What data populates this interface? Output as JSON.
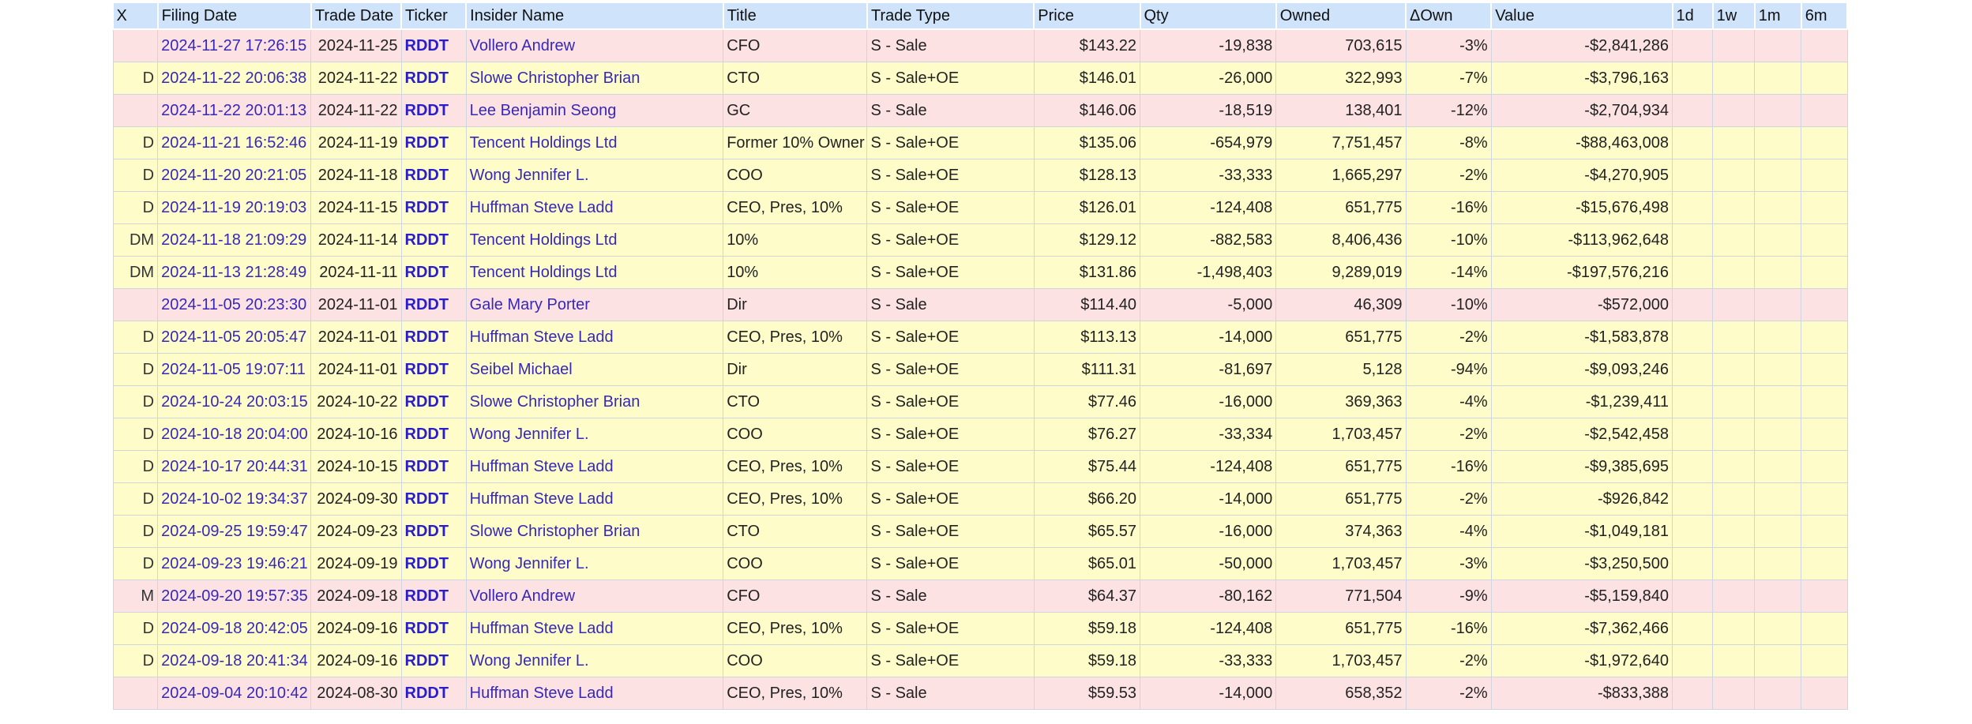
{
  "table": {
    "headers": [
      "X",
      "Filing Date",
      "Trade Date",
      "Ticker",
      "Insider Name",
      "Title",
      "Trade Type",
      "Price",
      "Qty",
      "Owned",
      "ΔOwn",
      "Value",
      "1d",
      "1w",
      "1m",
      "6m"
    ],
    "rows": [
      {
        "x": "",
        "filing_date": "2024-11-27 17:26:15",
        "trade_date": "2024-11-25",
        "ticker": "RDDT",
        "insider": "Vollero Andrew",
        "title": "CFO",
        "trade_type": "S - Sale",
        "price": "$143.22",
        "qty": "-19,838",
        "owned": "703,615",
        "own_change": "-3%",
        "value": "-$2,841,286",
        "d1": "",
        "w1": "",
        "m1": "",
        "m6": ""
      },
      {
        "x": "D",
        "filing_date": "2024-11-22 20:06:38",
        "trade_date": "2024-11-22",
        "ticker": "RDDT",
        "insider": "Slowe Christopher Brian",
        "title": "CTO",
        "trade_type": "S - Sale+OE",
        "price": "$146.01",
        "qty": "-26,000",
        "owned": "322,993",
        "own_change": "-7%",
        "value": "-$3,796,163",
        "d1": "",
        "w1": "",
        "m1": "",
        "m6": ""
      },
      {
        "x": "",
        "filing_date": "2024-11-22 20:01:13",
        "trade_date": "2024-11-22",
        "ticker": "RDDT",
        "insider": "Lee Benjamin Seong",
        "title": "GC",
        "trade_type": "S - Sale",
        "price": "$146.06",
        "qty": "-18,519",
        "owned": "138,401",
        "own_change": "-12%",
        "value": "-$2,704,934",
        "d1": "",
        "w1": "",
        "m1": "",
        "m6": ""
      },
      {
        "x": "D",
        "filing_date": "2024-11-21 16:52:46",
        "trade_date": "2024-11-19",
        "ticker": "RDDT",
        "insider": "Tencent Holdings Ltd",
        "title": "Former 10% Owner",
        "trade_type": "S - Sale+OE",
        "price": "$135.06",
        "qty": "-654,979",
        "owned": "7,751,457",
        "own_change": "-8%",
        "value": "-$88,463,008",
        "d1": "",
        "w1": "",
        "m1": "",
        "m6": ""
      },
      {
        "x": "D",
        "filing_date": "2024-11-20 20:21:05",
        "trade_date": "2024-11-18",
        "ticker": "RDDT",
        "insider": "Wong Jennifer L.",
        "title": "COO",
        "trade_type": "S - Sale+OE",
        "price": "$128.13",
        "qty": "-33,333",
        "owned": "1,665,297",
        "own_change": "-2%",
        "value": "-$4,270,905",
        "d1": "",
        "w1": "",
        "m1": "",
        "m6": ""
      },
      {
        "x": "D",
        "filing_date": "2024-11-19 20:19:03",
        "trade_date": "2024-11-15",
        "ticker": "RDDT",
        "insider": "Huffman Steve Ladd",
        "title": "CEO, Pres, 10%",
        "trade_type": "S - Sale+OE",
        "price": "$126.01",
        "qty": "-124,408",
        "owned": "651,775",
        "own_change": "-16%",
        "value": "-$15,676,498",
        "d1": "",
        "w1": "",
        "m1": "",
        "m6": ""
      },
      {
        "x": "DM",
        "filing_date": "2024-11-18 21:09:29",
        "trade_date": "2024-11-14",
        "ticker": "RDDT",
        "insider": "Tencent Holdings Ltd",
        "title": "10%",
        "trade_type": "S - Sale+OE",
        "price": "$129.12",
        "qty": "-882,583",
        "owned": "8,406,436",
        "own_change": "-10%",
        "value": "-$113,962,648",
        "d1": "",
        "w1": "",
        "m1": "",
        "m6": ""
      },
      {
        "x": "DM",
        "filing_date": "2024-11-13 21:28:49",
        "trade_date": "2024-11-11",
        "ticker": "RDDT",
        "insider": "Tencent Holdings Ltd",
        "title": "10%",
        "trade_type": "S - Sale+OE",
        "price": "$131.86",
        "qty": "-1,498,403",
        "owned": "9,289,019",
        "own_change": "-14%",
        "value": "-$197,576,216",
        "d1": "",
        "w1": "",
        "m1": "",
        "m6": ""
      },
      {
        "x": "",
        "filing_date": "2024-11-05 20:23:30",
        "trade_date": "2024-11-01",
        "ticker": "RDDT",
        "insider": "Gale Mary Porter",
        "title": "Dir",
        "trade_type": "S - Sale",
        "price": "$114.40",
        "qty": "-5,000",
        "owned": "46,309",
        "own_change": "-10%",
        "value": "-$572,000",
        "d1": "",
        "w1": "",
        "m1": "",
        "m6": ""
      },
      {
        "x": "D",
        "filing_date": "2024-11-05 20:05:47",
        "trade_date": "2024-11-01",
        "ticker": "RDDT",
        "insider": "Huffman Steve Ladd",
        "title": "CEO, Pres, 10%",
        "trade_type": "S - Sale+OE",
        "price": "$113.13",
        "qty": "-14,000",
        "owned": "651,775",
        "own_change": "-2%",
        "value": "-$1,583,878",
        "d1": "",
        "w1": "",
        "m1": "",
        "m6": ""
      },
      {
        "x": "D",
        "filing_date": "2024-11-05 19:07:11",
        "trade_date": "2024-11-01",
        "ticker": "RDDT",
        "insider": "Seibel Michael",
        "title": "Dir",
        "trade_type": "S - Sale+OE",
        "price": "$111.31",
        "qty": "-81,697",
        "owned": "5,128",
        "own_change": "-94%",
        "value": "-$9,093,246",
        "d1": "",
        "w1": "",
        "m1": "",
        "m6": ""
      },
      {
        "x": "D",
        "filing_date": "2024-10-24 20:03:15",
        "trade_date": "2024-10-22",
        "ticker": "RDDT",
        "insider": "Slowe Christopher Brian",
        "title": "CTO",
        "trade_type": "S - Sale+OE",
        "price": "$77.46",
        "qty": "-16,000",
        "owned": "369,363",
        "own_change": "-4%",
        "value": "-$1,239,411",
        "d1": "",
        "w1": "",
        "m1": "",
        "m6": ""
      },
      {
        "x": "D",
        "filing_date": "2024-10-18 20:04:00",
        "trade_date": "2024-10-16",
        "ticker": "RDDT",
        "insider": "Wong Jennifer L.",
        "title": "COO",
        "trade_type": "S - Sale+OE",
        "price": "$76.27",
        "qty": "-33,334",
        "owned": "1,703,457",
        "own_change": "-2%",
        "value": "-$2,542,458",
        "d1": "",
        "w1": "",
        "m1": "",
        "m6": ""
      },
      {
        "x": "D",
        "filing_date": "2024-10-17 20:44:31",
        "trade_date": "2024-10-15",
        "ticker": "RDDT",
        "insider": "Huffman Steve Ladd",
        "title": "CEO, Pres, 10%",
        "trade_type": "S - Sale+OE",
        "price": "$75.44",
        "qty": "-124,408",
        "owned": "651,775",
        "own_change": "-16%",
        "value": "-$9,385,695",
        "d1": "",
        "w1": "",
        "m1": "",
        "m6": ""
      },
      {
        "x": "D",
        "filing_date": "2024-10-02 19:34:37",
        "trade_date": "2024-09-30",
        "ticker": "RDDT",
        "insider": "Huffman Steve Ladd",
        "title": "CEO, Pres, 10%",
        "trade_type": "S - Sale+OE",
        "price": "$66.20",
        "qty": "-14,000",
        "owned": "651,775",
        "own_change": "-2%",
        "value": "-$926,842",
        "d1": "",
        "w1": "",
        "m1": "",
        "m6": ""
      },
      {
        "x": "D",
        "filing_date": "2024-09-25 19:59:47",
        "trade_date": "2024-09-23",
        "ticker": "RDDT",
        "insider": "Slowe Christopher Brian",
        "title": "CTO",
        "trade_type": "S - Sale+OE",
        "price": "$65.57",
        "qty": "-16,000",
        "owned": "374,363",
        "own_change": "-4%",
        "value": "-$1,049,181",
        "d1": "",
        "w1": "",
        "m1": "",
        "m6": ""
      },
      {
        "x": "D",
        "filing_date": "2024-09-23 19:46:21",
        "trade_date": "2024-09-19",
        "ticker": "RDDT",
        "insider": "Wong Jennifer L.",
        "title": "COO",
        "trade_type": "S - Sale+OE",
        "price": "$65.01",
        "qty": "-50,000",
        "owned": "1,703,457",
        "own_change": "-3%",
        "value": "-$3,250,500",
        "d1": "",
        "w1": "",
        "m1": "",
        "m6": ""
      },
      {
        "x": "M",
        "filing_date": "2024-09-20 19:57:35",
        "trade_date": "2024-09-18",
        "ticker": "RDDT",
        "insider": "Vollero Andrew",
        "title": "CFO",
        "trade_type": "S - Sale",
        "price": "$64.37",
        "qty": "-80,162",
        "owned": "771,504",
        "own_change": "-9%",
        "value": "-$5,159,840",
        "d1": "",
        "w1": "",
        "m1": "",
        "m6": ""
      },
      {
        "x": "D",
        "filing_date": "2024-09-18 20:42:05",
        "trade_date": "2024-09-16",
        "ticker": "RDDT",
        "insider": "Huffman Steve Ladd",
        "title": "CEO, Pres, 10%",
        "trade_type": "S - Sale+OE",
        "price": "$59.18",
        "qty": "-124,408",
        "owned": "651,775",
        "own_change": "-16%",
        "value": "-$7,362,466",
        "d1": "",
        "w1": "",
        "m1": "",
        "m6": ""
      },
      {
        "x": "D",
        "filing_date": "2024-09-18 20:41:34",
        "trade_date": "2024-09-16",
        "ticker": "RDDT",
        "insider": "Wong Jennifer L.",
        "title": "COO",
        "trade_type": "S - Sale+OE",
        "price": "$59.18",
        "qty": "-33,333",
        "owned": "1,703,457",
        "own_change": "-2%",
        "value": "-$1,972,640",
        "d1": "",
        "w1": "",
        "m1": "",
        "m6": ""
      },
      {
        "x": "",
        "filing_date": "2024-09-04 20:10:42",
        "trade_date": "2024-08-30",
        "ticker": "RDDT",
        "insider": "Huffman Steve Ladd",
        "title": "CEO, Pres, 10%",
        "trade_type": "S - Sale",
        "price": "$59.53",
        "qty": "-14,000",
        "owned": "658,352",
        "own_change": "-2%",
        "value": "-$833,388",
        "d1": "",
        "w1": "",
        "m1": "",
        "m6": ""
      }
    ]
  }
}
